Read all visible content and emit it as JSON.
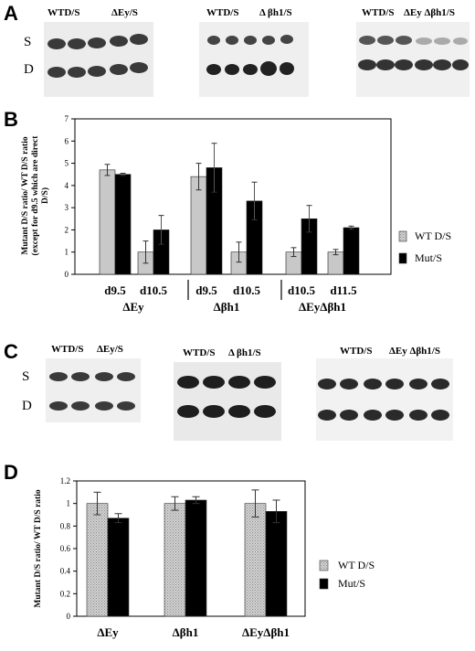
{
  "panels": {
    "A": "A",
    "B": "B",
    "C": "C",
    "D": "D"
  },
  "blots_A": {
    "row_labels": [
      "S",
      "D"
    ],
    "groups": [
      {
        "labels": [
          "WTD/S",
          "ΔEy/S"
        ]
      },
      {
        "labels": [
          "WTD/S",
          "Δ βh1/S"
        ]
      },
      {
        "labels": [
          "WTD/S",
          "ΔEy Δβh1/S"
        ]
      }
    ]
  },
  "blots_C": {
    "row_labels": [
      "S",
      "D"
    ],
    "groups": [
      {
        "labels": [
          "WTD/S",
          "ΔEy/S"
        ]
      },
      {
        "labels": [
          "WTD/S",
          "Δ βh1/S"
        ]
      },
      {
        "labels": [
          "WTD/S",
          "ΔEy Δβh1/S"
        ]
      }
    ]
  },
  "chart_data": [
    {
      "type": "bar",
      "ylabel": "Mutant D/S ratio/ WT D/S ratio (except for d9.5 which are direct D/S)",
      "ylim": [
        0,
        7
      ],
      "yticks": [
        0,
        1,
        2,
        3,
        4,
        5,
        6,
        7
      ],
      "categories": [
        "d9.5",
        "d10.5",
        "d9.5",
        "d10.5",
        "d10.5",
        "d11.5"
      ],
      "groups": [
        "ΔEy",
        "Δβh1",
        "ΔEyΔβh1"
      ],
      "series": [
        {
          "name": "WT D/S",
          "color": "#c8c8c8",
          "values": [
            4.7,
            1.0,
            4.4,
            1.0,
            1.0,
            1.0
          ],
          "errors": [
            0.25,
            0.5,
            0.6,
            0.45,
            0.2,
            0.12
          ]
        },
        {
          "name": "Mut/S",
          "color": "#000000",
          "values": [
            4.5,
            2.0,
            4.8,
            3.3,
            2.5,
            2.1
          ],
          "errors": [
            0.05,
            0.65,
            1.1,
            0.85,
            0.6,
            0.07
          ]
        }
      ],
      "legend": "right",
      "grid": false
    },
    {
      "type": "bar",
      "ylabel": "Mutant D/S ratio/ WT D/S ratio",
      "ylim": [
        0,
        1.2
      ],
      "yticks": [
        "0",
        "0.2",
        "0.4",
        "0.6",
        "0.8",
        "1",
        "1.2"
      ],
      "categories": [
        "ΔEy",
        "Δβh1",
        "ΔEyΔβh1"
      ],
      "series": [
        {
          "name": "WT D/S",
          "color": "#bdbdbd",
          "values": [
            1.0,
            1.0,
            1.0
          ],
          "errors": [
            0.1,
            0.06,
            0.12
          ]
        },
        {
          "name": "Mut/S",
          "color": "#000000",
          "values": [
            0.87,
            1.03,
            0.93
          ],
          "errors": [
            0.04,
            0.03,
            0.1
          ]
        }
      ],
      "legend": "right",
      "grid": false
    }
  ]
}
